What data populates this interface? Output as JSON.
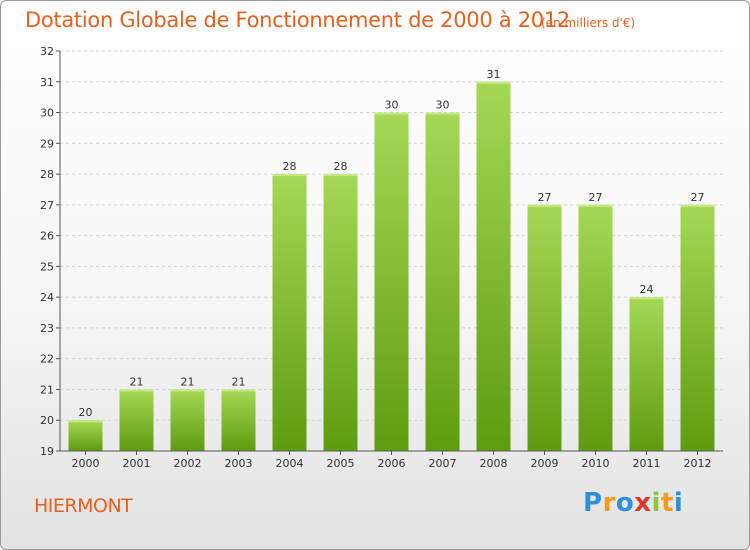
{
  "header": {
    "title": "Dotation Globale de Fonctionnement de 2000 à 2012",
    "subtitle": "(en milliers d'€)"
  },
  "footer": {
    "commune": "HIERMONT",
    "logo_text": "Proxiti"
  },
  "colors": {
    "title": "#e8601c",
    "bar_light": "#a6d856",
    "bar_dark": "#5e9c0f",
    "grid": "#d0d0d0",
    "axis": "#555555"
  },
  "chart_data": {
    "type": "bar",
    "title": "Dotation Globale de Fonctionnement de 2000 à 2012",
    "subtitle": "(en milliers d'€)",
    "xlabel": "",
    "ylabel": "",
    "categories": [
      "2000",
      "2001",
      "2002",
      "2003",
      "2004",
      "2005",
      "2006",
      "2007",
      "2008",
      "2009",
      "2010",
      "2011",
      "2012"
    ],
    "values": [
      20,
      21,
      21,
      21,
      28,
      28,
      30,
      30,
      31,
      27,
      27,
      24,
      27
    ],
    "ylim": [
      19,
      32
    ],
    "yticks": [
      19,
      20,
      21,
      22,
      23,
      24,
      25,
      26,
      27,
      28,
      29,
      30,
      31,
      32
    ],
    "grid": true,
    "legend": "none"
  }
}
